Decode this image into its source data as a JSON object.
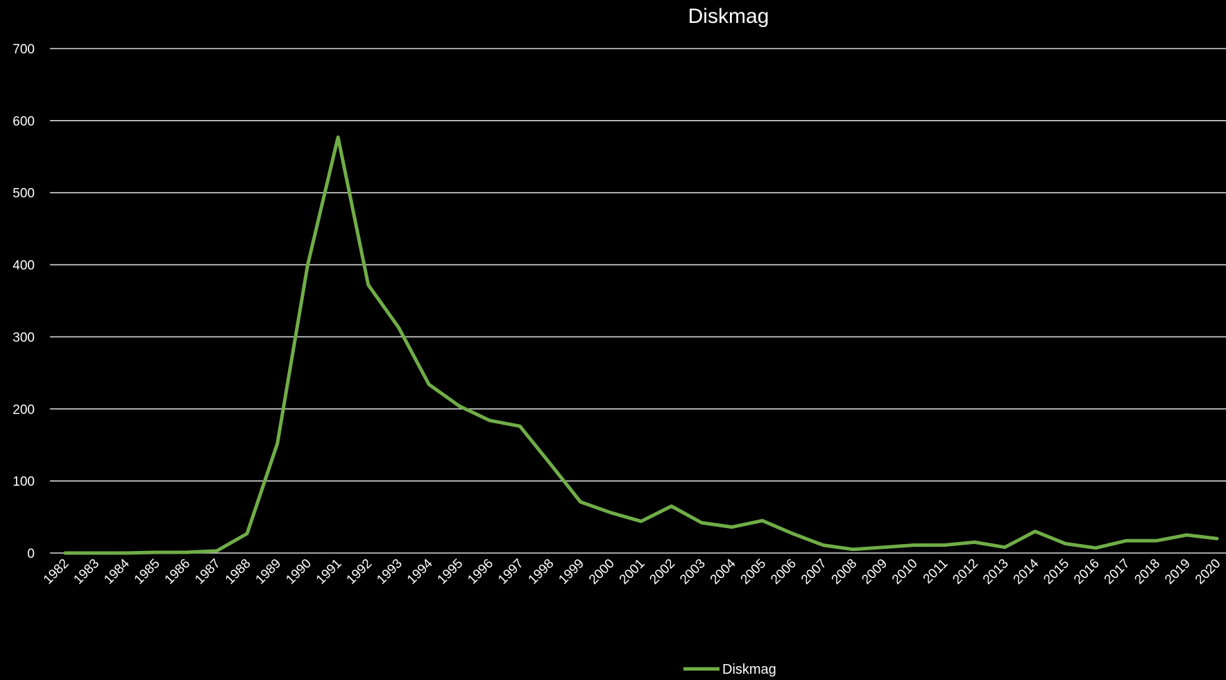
{
  "chart_data": {
    "type": "line",
    "title": "Diskmag",
    "xlabel": "",
    "ylabel": "",
    "ylim": [
      0,
      700
    ],
    "yticks": [
      0,
      100,
      200,
      300,
      400,
      500,
      600,
      700
    ],
    "grid": true,
    "legend_position": "bottom-center",
    "background": "#000000",
    "x": [
      1982,
      1983,
      1984,
      1985,
      1986,
      1987,
      1988,
      1989,
      1990,
      1991,
      1992,
      1993,
      1994,
      1995,
      1996,
      1997,
      1998,
      1999,
      2000,
      2001,
      2002,
      2003,
      2004,
      2005,
      2006,
      2007,
      2008,
      2009,
      2010,
      2011,
      2012,
      2013,
      2014,
      2015,
      2016,
      2017,
      2018,
      2019,
      2020
    ],
    "series": [
      {
        "name": "Diskmag",
        "color": "#70ad47",
        "values": [
          0,
          0,
          0,
          1,
          1,
          3,
          27,
          152,
          400,
          577,
          372,
          313,
          234,
          204,
          184,
          176,
          124,
          71,
          56,
          44,
          65,
          42,
          36,
          45,
          27,
          11,
          5,
          8,
          11,
          11,
          15,
          8,
          30,
          13,
          7,
          17,
          17,
          25,
          20
        ]
      }
    ]
  }
}
